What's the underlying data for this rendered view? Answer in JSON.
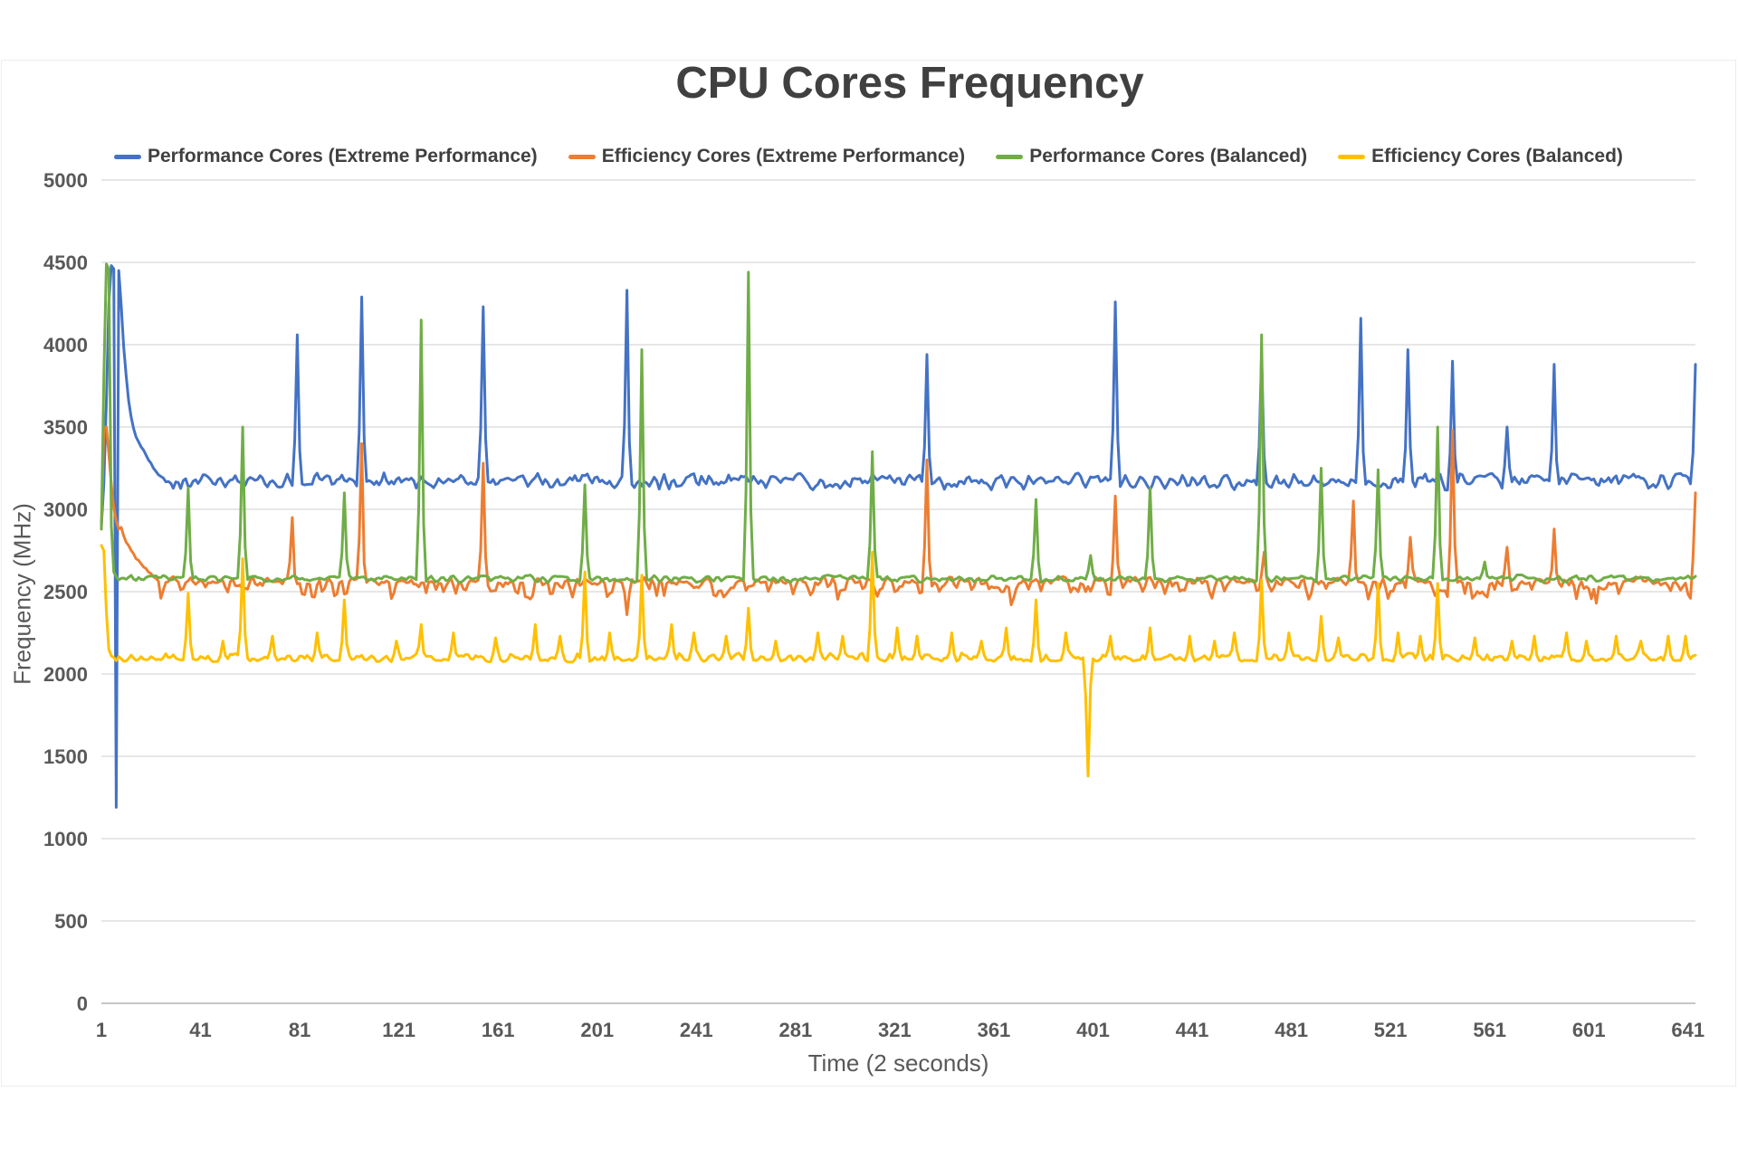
{
  "chart_data": {
    "type": "line",
    "title": "CPU Cores Frequency",
    "xlabel": "Time (2 seconds)",
    "ylabel": "Frequency (MHz)",
    "x_ticks": [
      1,
      41,
      81,
      121,
      161,
      201,
      241,
      281,
      321,
      361,
      401,
      441,
      481,
      521,
      561,
      601,
      641
    ],
    "x_max": 644,
    "y_ticks": [
      0,
      500,
      1000,
      1500,
      2000,
      2500,
      3000,
      3500,
      4000,
      4500,
      5000
    ],
    "ylim": [
      0,
      5000
    ],
    "grid": "horizontal-only",
    "legend_position": "top",
    "styles": {
      "title_color": "#404040",
      "tick_label_color": "#595959",
      "axis_title_color": "#595959",
      "gridline_color": "#e7e7e7",
      "axis_line_color": "#c6c6c6",
      "background": "#ffffff"
    },
    "series": [
      {
        "name": "Performance Cores (Extreme Performance)",
        "color": "#4472C4",
        "baseline": 3170,
        "noise_up": 55,
        "noise_down": 55,
        "seed": 7,
        "start_transient": [
          [
            1,
            2900
          ],
          [
            2,
            3150
          ],
          [
            3,
            3650
          ],
          [
            4,
            4250
          ],
          [
            5,
            4480
          ],
          [
            6,
            4460
          ],
          [
            7,
            1190
          ],
          [
            8,
            4450
          ],
          [
            9,
            4240
          ],
          [
            10,
            3990
          ],
          [
            11,
            3810
          ],
          [
            12,
            3660
          ],
          [
            13,
            3560
          ],
          [
            14,
            3490
          ],
          [
            15,
            3440
          ],
          [
            16,
            3410
          ],
          [
            17,
            3380
          ],
          [
            18,
            3360
          ],
          [
            19,
            3330
          ],
          [
            20,
            3300
          ],
          [
            21,
            3280
          ],
          [
            22,
            3250
          ],
          [
            23,
            3230
          ],
          [
            24,
            3210
          ],
          [
            25,
            3200
          ],
          [
            26,
            3190
          ]
        ],
        "spikes": [
          [
            80,
            4060
          ],
          [
            106,
            4290
          ],
          [
            155,
            4230
          ],
          [
            213,
            4330
          ],
          [
            334,
            3940
          ],
          [
            410,
            4260
          ],
          [
            469,
            3940
          ],
          [
            509,
            4160
          ],
          [
            528,
            3970
          ],
          [
            546,
            3900
          ],
          [
            568,
            3500
          ],
          [
            587,
            3880
          ],
          [
            644,
            3880
          ]
        ],
        "dips": []
      },
      {
        "name": "Efficiency Cores (Extreme Performance)",
        "color": "#ED7D31",
        "baseline": 2550,
        "noise_up": 45,
        "noise_down": 110,
        "seed": 13,
        "start_transient": [
          [
            1,
            2880
          ],
          [
            2,
            3490
          ],
          [
            3,
            3500
          ],
          [
            4,
            3340
          ],
          [
            5,
            3150
          ],
          [
            6,
            3010
          ],
          [
            7,
            2930
          ],
          [
            8,
            2880
          ],
          [
            9,
            2890
          ],
          [
            10,
            2840
          ],
          [
            11,
            2800
          ],
          [
            12,
            2780
          ],
          [
            13,
            2750
          ],
          [
            14,
            2730
          ],
          [
            15,
            2700
          ],
          [
            16,
            2690
          ],
          [
            17,
            2670
          ],
          [
            18,
            2650
          ],
          [
            19,
            2640
          ],
          [
            20,
            2620
          ],
          [
            21,
            2610
          ],
          [
            22,
            2590
          ],
          [
            23,
            2580
          ],
          [
            24,
            2565
          ]
        ],
        "spikes": [
          [
            78,
            2950
          ],
          [
            106,
            3400
          ],
          [
            155,
            3280
          ],
          [
            334,
            3300
          ],
          [
            410,
            3080
          ],
          [
            470,
            2740
          ],
          [
            506,
            3050
          ],
          [
            529,
            2830
          ],
          [
            546,
            3480
          ],
          [
            568,
            2770
          ],
          [
            587,
            2880
          ],
          [
            644,
            3100
          ]
        ],
        "dips": [
          [
            213,
            2360
          ],
          [
            368,
            2420
          ],
          [
            604,
            2430
          ]
        ]
      },
      {
        "name": "Performance Cores (Balanced)",
        "color": "#70AD47",
        "baseline": 2580,
        "noise_up": 22,
        "noise_down": 28,
        "seed": 3,
        "start_transient": [
          [
            1,
            2880
          ],
          [
            2,
            3800
          ],
          [
            3,
            4490
          ],
          [
            4,
            4460
          ],
          [
            5,
            2900
          ],
          [
            6,
            2620
          ],
          [
            7,
            2590
          ]
        ],
        "spikes": [
          [
            36,
            3130
          ],
          [
            58,
            3500
          ],
          [
            99,
            3100
          ],
          [
            130,
            4150
          ],
          [
            196,
            3150
          ],
          [
            219,
            3970
          ],
          [
            262,
            4440
          ],
          [
            312,
            3350
          ],
          [
            378,
            3060
          ],
          [
            400,
            2720
          ],
          [
            424,
            3130
          ],
          [
            469,
            4060
          ],
          [
            493,
            3250
          ],
          [
            516,
            3240
          ],
          [
            540,
            3500
          ],
          [
            559,
            2680
          ]
        ],
        "dips": []
      },
      {
        "name": "Efficiency Cores (Balanced)",
        "color": "#FFC000",
        "baseline": 2090,
        "noise_up": 40,
        "noise_down": 18,
        "seed": 21,
        "start_transient": [
          [
            1,
            2780
          ],
          [
            2,
            2750
          ],
          [
            3,
            2380
          ],
          [
            4,
            2150
          ],
          [
            5,
            2110
          ],
          [
            6,
            2100
          ]
        ],
        "spikes": [
          [
            36,
            2490
          ],
          [
            50,
            2200
          ],
          [
            58,
            2700
          ],
          [
            70,
            2230
          ],
          [
            88,
            2250
          ],
          [
            99,
            2450
          ],
          [
            120,
            2200
          ],
          [
            130,
            2300
          ],
          [
            143,
            2250
          ],
          [
            160,
            2220
          ],
          [
            176,
            2300
          ],
          [
            186,
            2230
          ],
          [
            196,
            2620
          ],
          [
            206,
            2250
          ],
          [
            219,
            2600
          ],
          [
            231,
            2300
          ],
          [
            240,
            2250
          ],
          [
            253,
            2230
          ],
          [
            262,
            2400
          ],
          [
            273,
            2200
          ],
          [
            290,
            2250
          ],
          [
            300,
            2230
          ],
          [
            312,
            2740
          ],
          [
            322,
            2280
          ],
          [
            330,
            2230
          ],
          [
            344,
            2250
          ],
          [
            356,
            2200
          ],
          [
            366,
            2280
          ],
          [
            378,
            2450
          ],
          [
            390,
            2250
          ],
          [
            408,
            2230
          ],
          [
            424,
            2280
          ],
          [
            440,
            2230
          ],
          [
            450,
            2200
          ],
          [
            458,
            2250
          ],
          [
            469,
            2570
          ],
          [
            480,
            2250
          ],
          [
            493,
            2350
          ],
          [
            500,
            2220
          ],
          [
            516,
            2550
          ],
          [
            524,
            2250
          ],
          [
            533,
            2230
          ],
          [
            540,
            2550
          ],
          [
            555,
            2220
          ],
          [
            570,
            2200
          ],
          [
            579,
            2230
          ],
          [
            592,
            2250
          ],
          [
            600,
            2200
          ],
          [
            612,
            2230
          ],
          [
            622,
            2200
          ],
          [
            633,
            2230
          ],
          [
            640,
            2230
          ]
        ],
        "dips": [
          [
            399,
            1380
          ]
        ]
      }
    ]
  }
}
